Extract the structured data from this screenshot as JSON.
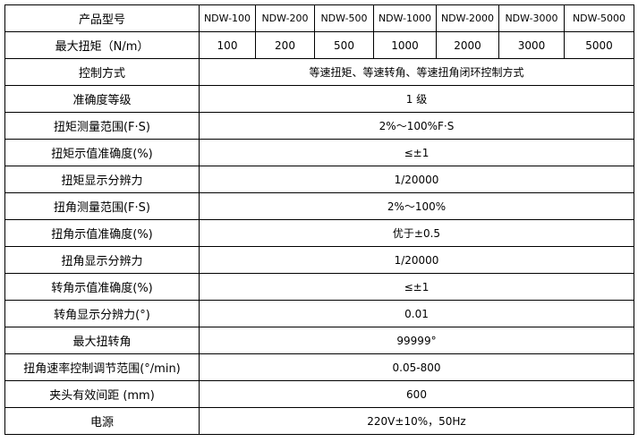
{
  "header": {
    "label": "产品型号",
    "models": [
      "NDW-100",
      "NDW-200",
      "NDW-500",
      "NDW-1000",
      "NDW-2000",
      "NDW-3000",
      "NDW-5000"
    ]
  },
  "torque_row": {
    "label": "最大扭矩（N/m）",
    "values": [
      "100",
      "200",
      "500",
      "1000",
      "2000",
      "3000",
      "5000"
    ]
  },
  "rows": [
    {
      "label": "控制方式",
      "value": "等速扭矩、等速转角、等速扭角闭环控制方式"
    },
    {
      "label": "准确度等级",
      "value": "1 级"
    },
    {
      "label": "扭矩测量范围(F·S)",
      "value": "2%～100%F·S"
    },
    {
      "label": "扭矩示值准确度(%)",
      "value": "≤±1"
    },
    {
      "label": "扭矩显示分辨力",
      "value": "1/20000"
    },
    {
      "label": "扭角测量范围(F·S)",
      "value": "2%～100%"
    },
    {
      "label": "扭角示值准确度(%)",
      "value": "优于±0.5"
    },
    {
      "label": "扭角显示分辨力",
      "value": "1/20000"
    },
    {
      "label": "转角示值准确度(%)",
      "value": "≤±1"
    },
    {
      "label": "转角显示分辨力(°)",
      "value": "0.01"
    },
    {
      "label": "最大扭转角",
      "value": "99999°"
    },
    {
      "label": "扭角速率控制调节范围(°/min)",
      "value": "0.05-800"
    },
    {
      "label": "夹头有效间距 (mm)",
      "value": "600"
    },
    {
      "label": "电源",
      "value": "220V±10%，50Hz"
    }
  ]
}
